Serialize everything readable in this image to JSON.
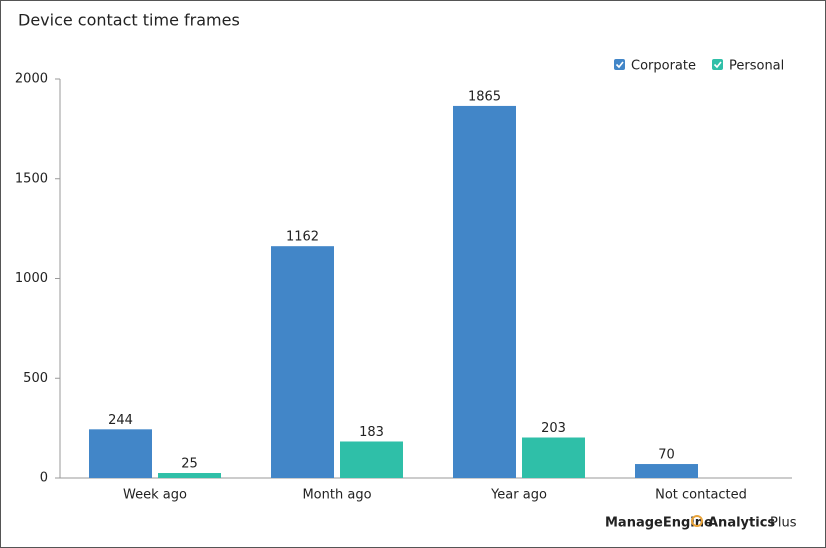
{
  "chart_data": {
    "type": "bar",
    "title": "Device contact time frames",
    "categories": [
      "Week ago",
      "Month ago",
      "Year ago",
      "Not contacted"
    ],
    "series": [
      {
        "name": "Corporate",
        "color": "#4286c8",
        "values": [
          244,
          1162,
          1865,
          70
        ]
      },
      {
        "name": "Personal",
        "color": "#2fbfa8",
        "values": [
          25,
          183,
          203,
          null
        ]
      }
    ],
    "ylim": [
      0,
      2000
    ],
    "yticks": [
      0,
      500,
      1000,
      1500,
      2000
    ],
    "grid": false,
    "legend": "top-right",
    "branding": {
      "brand": "ManageEngine",
      "product": "Analytics",
      "suffix": "Plus"
    }
  }
}
